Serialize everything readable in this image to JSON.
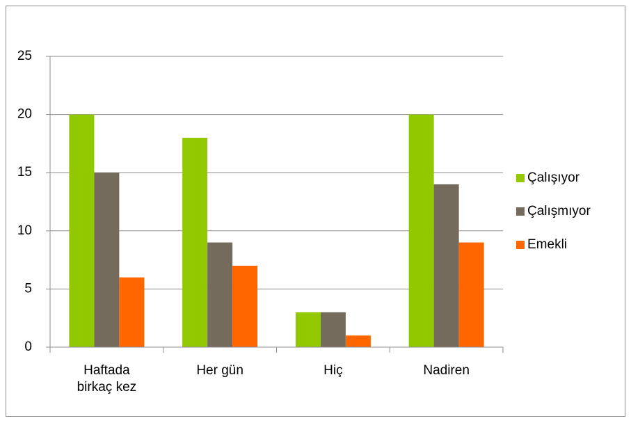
{
  "chart_data": {
    "type": "bar",
    "categories": [
      "Haftada birkaç kez",
      "Her gün",
      "Hiç",
      "Nadiren"
    ],
    "series": [
      {
        "name": "Çalışıyor",
        "color": "#92c800",
        "values": [
          20,
          18,
          3,
          20
        ]
      },
      {
        "name": "Çalışmıyor",
        "color": "#756b5d",
        "values": [
          15,
          9,
          3,
          14
        ]
      },
      {
        "name": "Emekli",
        "color": "#ff6600",
        "values": [
          6,
          7,
          1,
          9
        ]
      }
    ],
    "ylim": [
      0,
      25
    ],
    "yticks": [
      0,
      5,
      10,
      15,
      20,
      25
    ],
    "grid": true,
    "legend": "right"
  }
}
